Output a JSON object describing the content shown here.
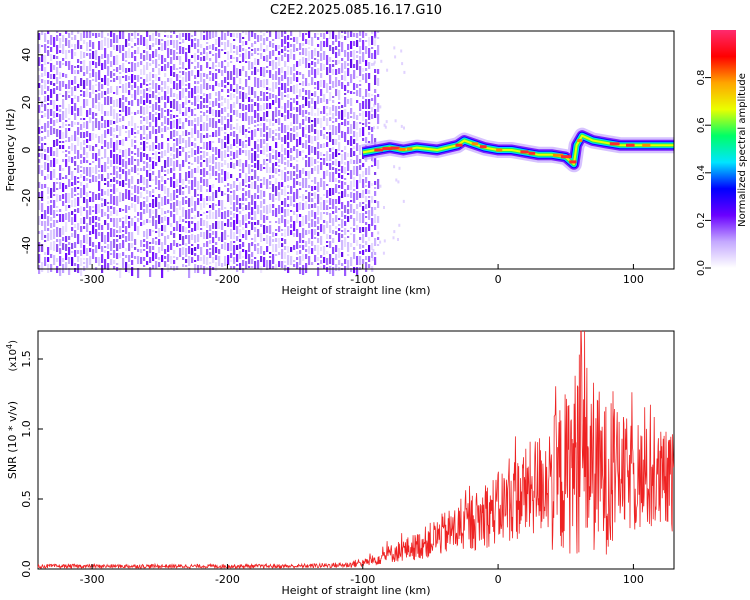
{
  "title": "C2E2.2025.085.16.17.G10",
  "chart_data": [
    {
      "type": "heatmap",
      "xlabel": "Height of straight line (km)",
      "ylabel": "Frequency (Hz)",
      "xlim": [
        -340,
        130
      ],
      "ylim": [
        -50,
        50
      ],
      "xticks": [
        -300,
        -200,
        -100,
        0,
        100
      ],
      "yticks": [
        -40,
        -20,
        0,
        20,
        40
      ],
      "noise_region": [
        -340,
        -95
      ],
      "signal_track": [
        {
          "x": -100,
          "y": -1
        },
        {
          "x": -90,
          "y": 0
        },
        {
          "x": -80,
          "y": 1
        },
        {
          "x": -70,
          "y": 0
        },
        {
          "x": -60,
          "y": 1
        },
        {
          "x": -45,
          "y": 0
        },
        {
          "x": -30,
          "y": 2
        },
        {
          "x": -25,
          "y": 4
        },
        {
          "x": -20,
          "y": 3
        },
        {
          "x": -10,
          "y": 1
        },
        {
          "x": 0,
          "y": 0
        },
        {
          "x": 10,
          "y": 0
        },
        {
          "x": 20,
          "y": -1
        },
        {
          "x": 30,
          "y": -2
        },
        {
          "x": 40,
          "y": -2
        },
        {
          "x": 50,
          "y": -3
        },
        {
          "x": 56,
          "y": -6
        },
        {
          "x": 58,
          "y": 2
        },
        {
          "x": 62,
          "y": 6
        },
        {
          "x": 66,
          "y": 5
        },
        {
          "x": 70,
          "y": 4
        },
        {
          "x": 80,
          "y": 3
        },
        {
          "x": 90,
          "y": 2
        },
        {
          "x": 100,
          "y": 2
        },
        {
          "x": 110,
          "y": 2
        },
        {
          "x": 120,
          "y": 2
        },
        {
          "x": 130,
          "y": 2
        }
      ],
      "colorbar": {
        "label": "Normalized spectral amplitude",
        "ticks": [
          0.0,
          0.2,
          0.4,
          0.6,
          0.8
        ],
        "colors": [
          "#ffffff",
          "#c4a8ff",
          "#6a00ff",
          "#0000ff",
          "#00e5ff",
          "#00ff66",
          "#eaff00",
          "#ffa500",
          "#ff0000",
          "#ff2a6e"
        ]
      }
    },
    {
      "type": "line",
      "xlabel": "Height of straight line (km)",
      "ylabel": "SNR (10 * v/v)",
      "scale_label": "(x10",
      "scale_exp": "4",
      "xlim": [
        -340,
        130
      ],
      "ylim": [
        0,
        1.7
      ],
      "xticks": [
        -300,
        -200,
        -100,
        0,
        100
      ],
      "yticks": [
        0.0,
        0.5,
        1.0,
        1.5
      ],
      "color": "#ee2222",
      "envelope": [
        {
          "x": -340,
          "y": 0.02
        },
        {
          "x": -150,
          "y": 0.02
        },
        {
          "x": -110,
          "y": 0.03
        },
        {
          "x": -95,
          "y": 0.06
        },
        {
          "x": -80,
          "y": 0.12
        },
        {
          "x": -60,
          "y": 0.18
        },
        {
          "x": -40,
          "y": 0.28
        },
        {
          "x": -20,
          "y": 0.36
        },
        {
          "x": 0,
          "y": 0.48
        },
        {
          "x": 20,
          "y": 0.6
        },
        {
          "x": 40,
          "y": 0.75
        },
        {
          "x": 55,
          "y": 0.95
        },
        {
          "x": 62,
          "y": 1.1
        },
        {
          "x": 70,
          "y": 0.95
        },
        {
          "x": 80,
          "y": 0.82
        },
        {
          "x": 100,
          "y": 0.72
        },
        {
          "x": 130,
          "y": 0.68
        }
      ],
      "peak": {
        "x": 61,
        "y": 1.7
      }
    }
  ]
}
